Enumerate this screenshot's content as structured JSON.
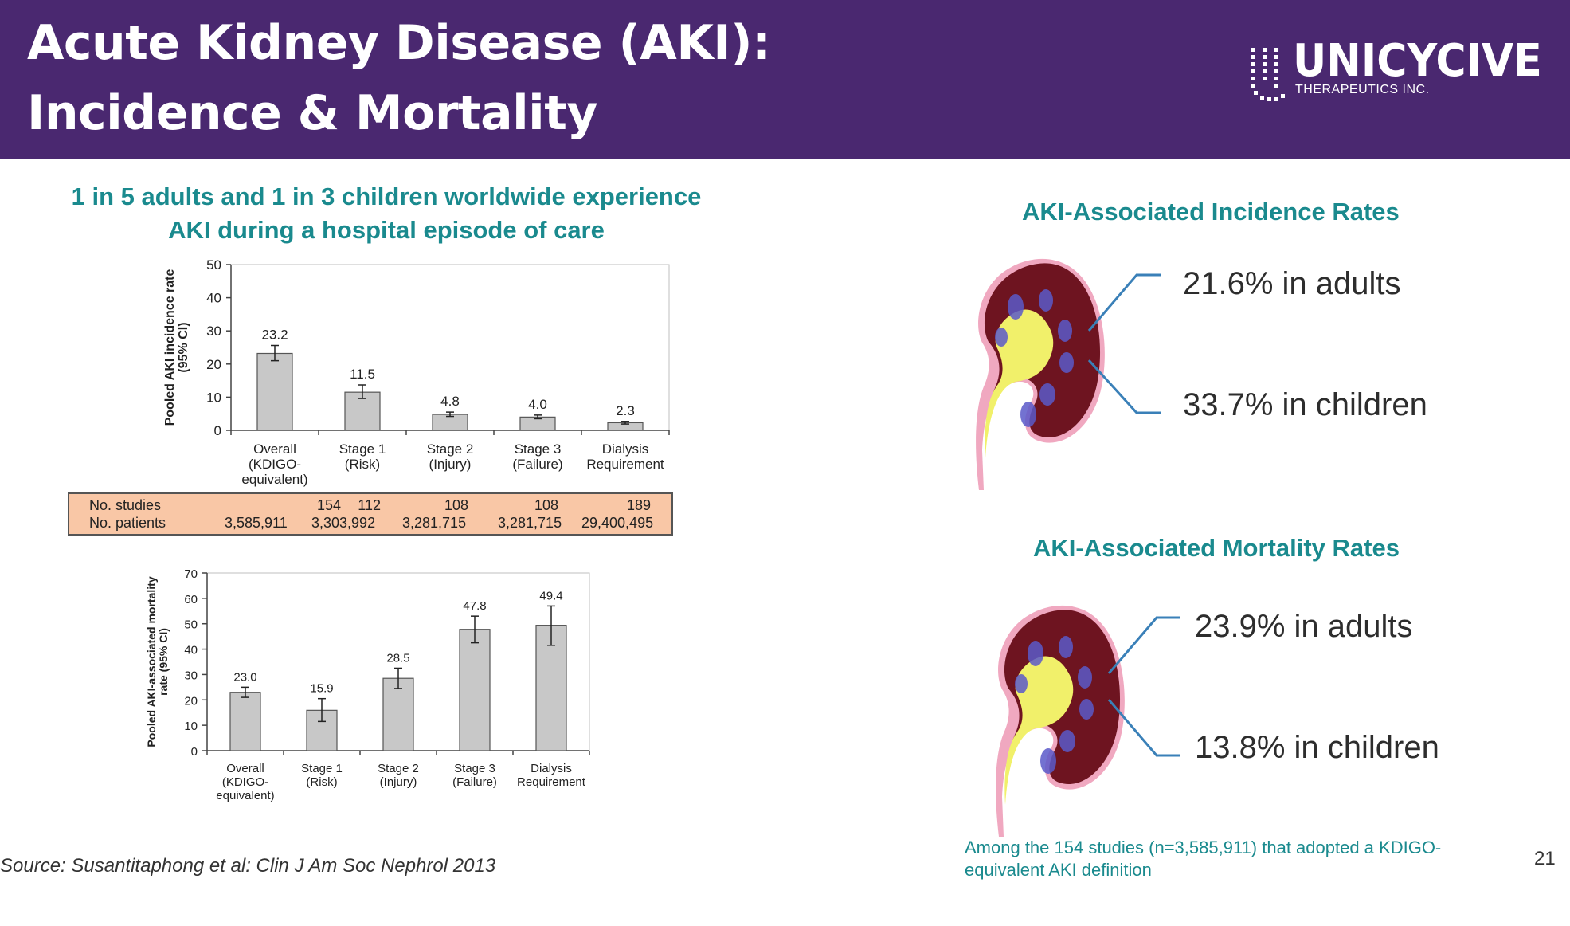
{
  "header": {
    "title_line1": "Acute Kidney Disease (AKI):",
    "title_line2": "Incidence & Mortality",
    "logo_name": "UNICYCIVE",
    "logo_sub": "THERAPEUTICS INC."
  },
  "left": {
    "subtitle_line1": "1 in 5 adults and 1 in 3 children worldwide experience",
    "subtitle_line2": "AKI during a hospital episode of care"
  },
  "right": {
    "incidence_title": "AKI-Associated Incidence Rates",
    "incidence_adults": "21.6% in adults",
    "incidence_children": "33.7% in children",
    "mortality_title": "AKI-Associated Mortality Rates",
    "mortality_adults": "23.9% in adults",
    "mortality_children": "13.8% in children",
    "note": "Among the 154 studies (n=3,585,911) that adopted a KDIGO-equivalent AKI definition"
  },
  "footer": {
    "source": "Source:  Susantitaphong et al: Clin J Am Soc Nephrol 2013",
    "page": "21"
  },
  "colors": {
    "header_bg": "#4a2870",
    "teal": "#1a8a8e",
    "bar_fill": "#c8c8c8",
    "table_bg": "#f9c7a6",
    "connector": "#3a80b8"
  },
  "icons": [
    "kidney-icon",
    "kidney-icon"
  ],
  "table": {
    "row_labels": [
      "No. studies",
      "No. patients"
    ],
    "studies": [
      "154",
      "112",
      "108",
      "108",
      "189"
    ],
    "patients": [
      "3,585,911",
      "3,303,992",
      "3,281,715",
      "3,281,715",
      "29,400,495"
    ]
  },
  "chart_data": [
    {
      "type": "bar",
      "title": "",
      "ylabel": "Pooled AKI incidence rate (95% CI)",
      "xlabel": "",
      "ylim": [
        0,
        50
      ],
      "yticks": [
        0,
        10,
        20,
        30,
        40,
        50
      ],
      "categories": [
        [
          "Overall",
          "(KDIGO-",
          "equivalent)"
        ],
        [
          "Stage 1",
          "(Risk)"
        ],
        [
          "Stage 2",
          "(Injury)"
        ],
        [
          "Stage 3",
          "(Failure)"
        ],
        [
          "Dialysis",
          "Requirement"
        ]
      ],
      "values": [
        23.2,
        11.5,
        4.8,
        4.0,
        2.3
      ],
      "labels": [
        "23.2",
        "11.5",
        "4.8",
        "4.0",
        "2.3"
      ],
      "ci_low": [
        21.0,
        9.6,
        4.2,
        3.5,
        1.9
      ],
      "ci_high": [
        25.6,
        13.7,
        5.5,
        4.6,
        2.7
      ]
    },
    {
      "type": "bar",
      "title": "",
      "ylabel": "Pooled AKI-associated mortality rate (95% CI)",
      "xlabel": "",
      "ylim": [
        0,
        70
      ],
      "yticks": [
        0,
        10,
        20,
        30,
        40,
        50,
        60,
        70
      ],
      "categories": [
        [
          "Overall",
          "(KDIGO-",
          "equivalent)"
        ],
        [
          "Stage 1",
          "(Risk)"
        ],
        [
          "Stage 2",
          "(Injury)"
        ],
        [
          "Stage 3",
          "(Failure)"
        ],
        [
          "Dialysis",
          "Requirement"
        ]
      ],
      "values": [
        23.0,
        15.9,
        28.5,
        47.8,
        49.4
      ],
      "labels": [
        "23.0",
        "15.9",
        "28.5",
        "47.8",
        "49.4"
      ],
      "ci_low": [
        21.0,
        11.5,
        24.5,
        42.5,
        41.5
      ],
      "ci_high": [
        25.0,
        20.5,
        32.5,
        53.0,
        57.0
      ]
    }
  ]
}
